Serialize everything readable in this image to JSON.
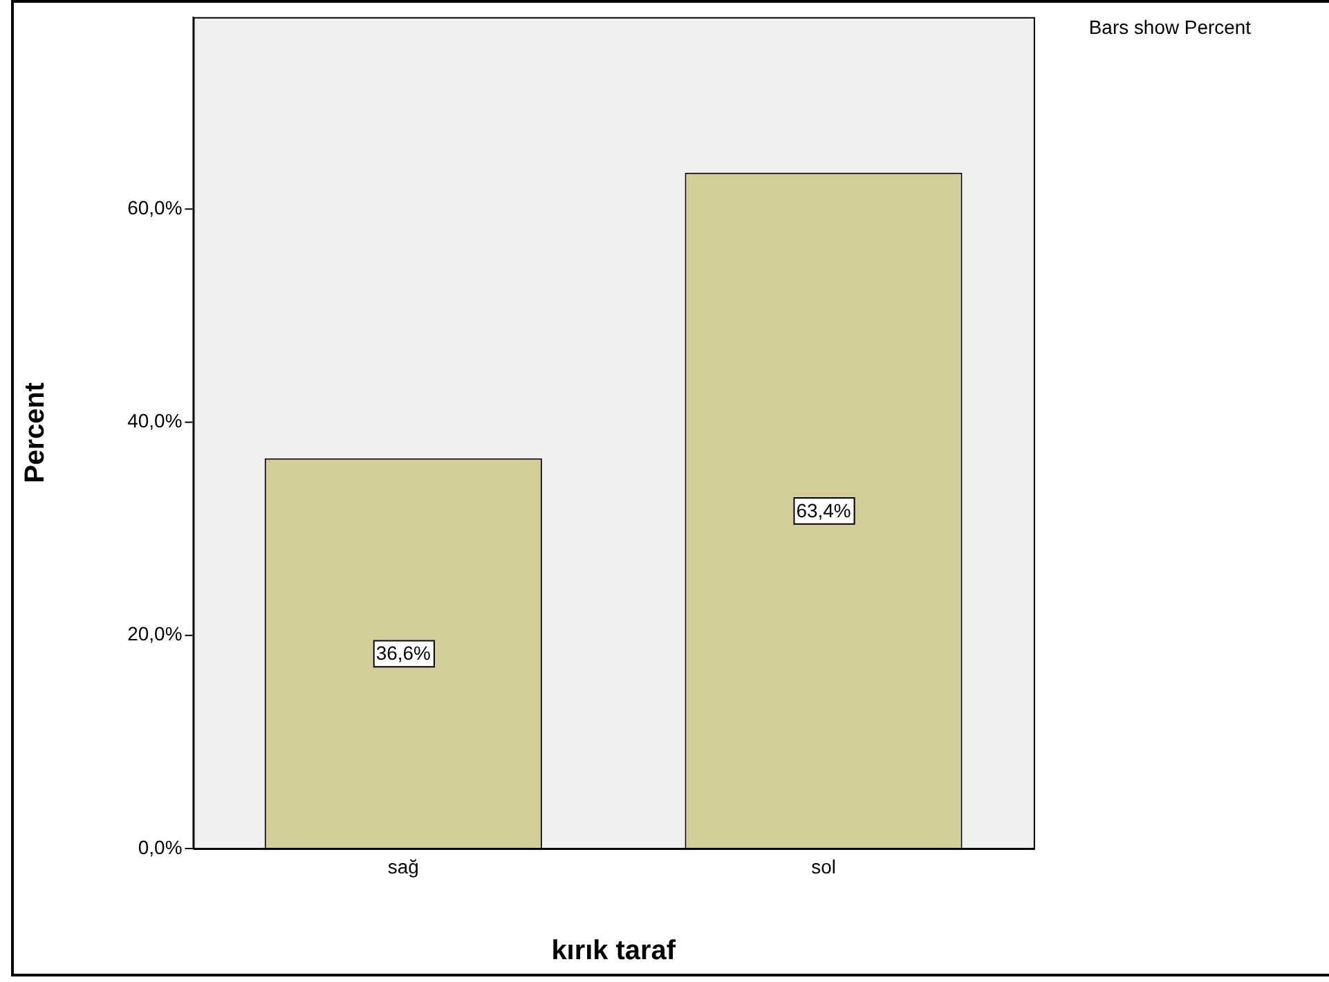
{
  "chart_data": {
    "type": "bar",
    "xlabel": "kırık taraf",
    "ylabel": "Percent",
    "categories": [
      "sağ",
      "sol"
    ],
    "values": [
      36.6,
      63.4
    ],
    "value_labels": [
      "36,6%",
      "63,4%"
    ],
    "color": "#d3ce97",
    "ylim": [
      0,
      78
    ],
    "yticks": [
      {
        "value": 0,
        "label": "0,0%"
      },
      {
        "value": 20,
        "label": "20,0%"
      },
      {
        "value": 40,
        "label": "40,0%"
      },
      {
        "value": 60,
        "label": "60,0%"
      }
    ],
    "grid": false,
    "legend": false,
    "annotations": [
      "Bars show Percent"
    ]
  }
}
